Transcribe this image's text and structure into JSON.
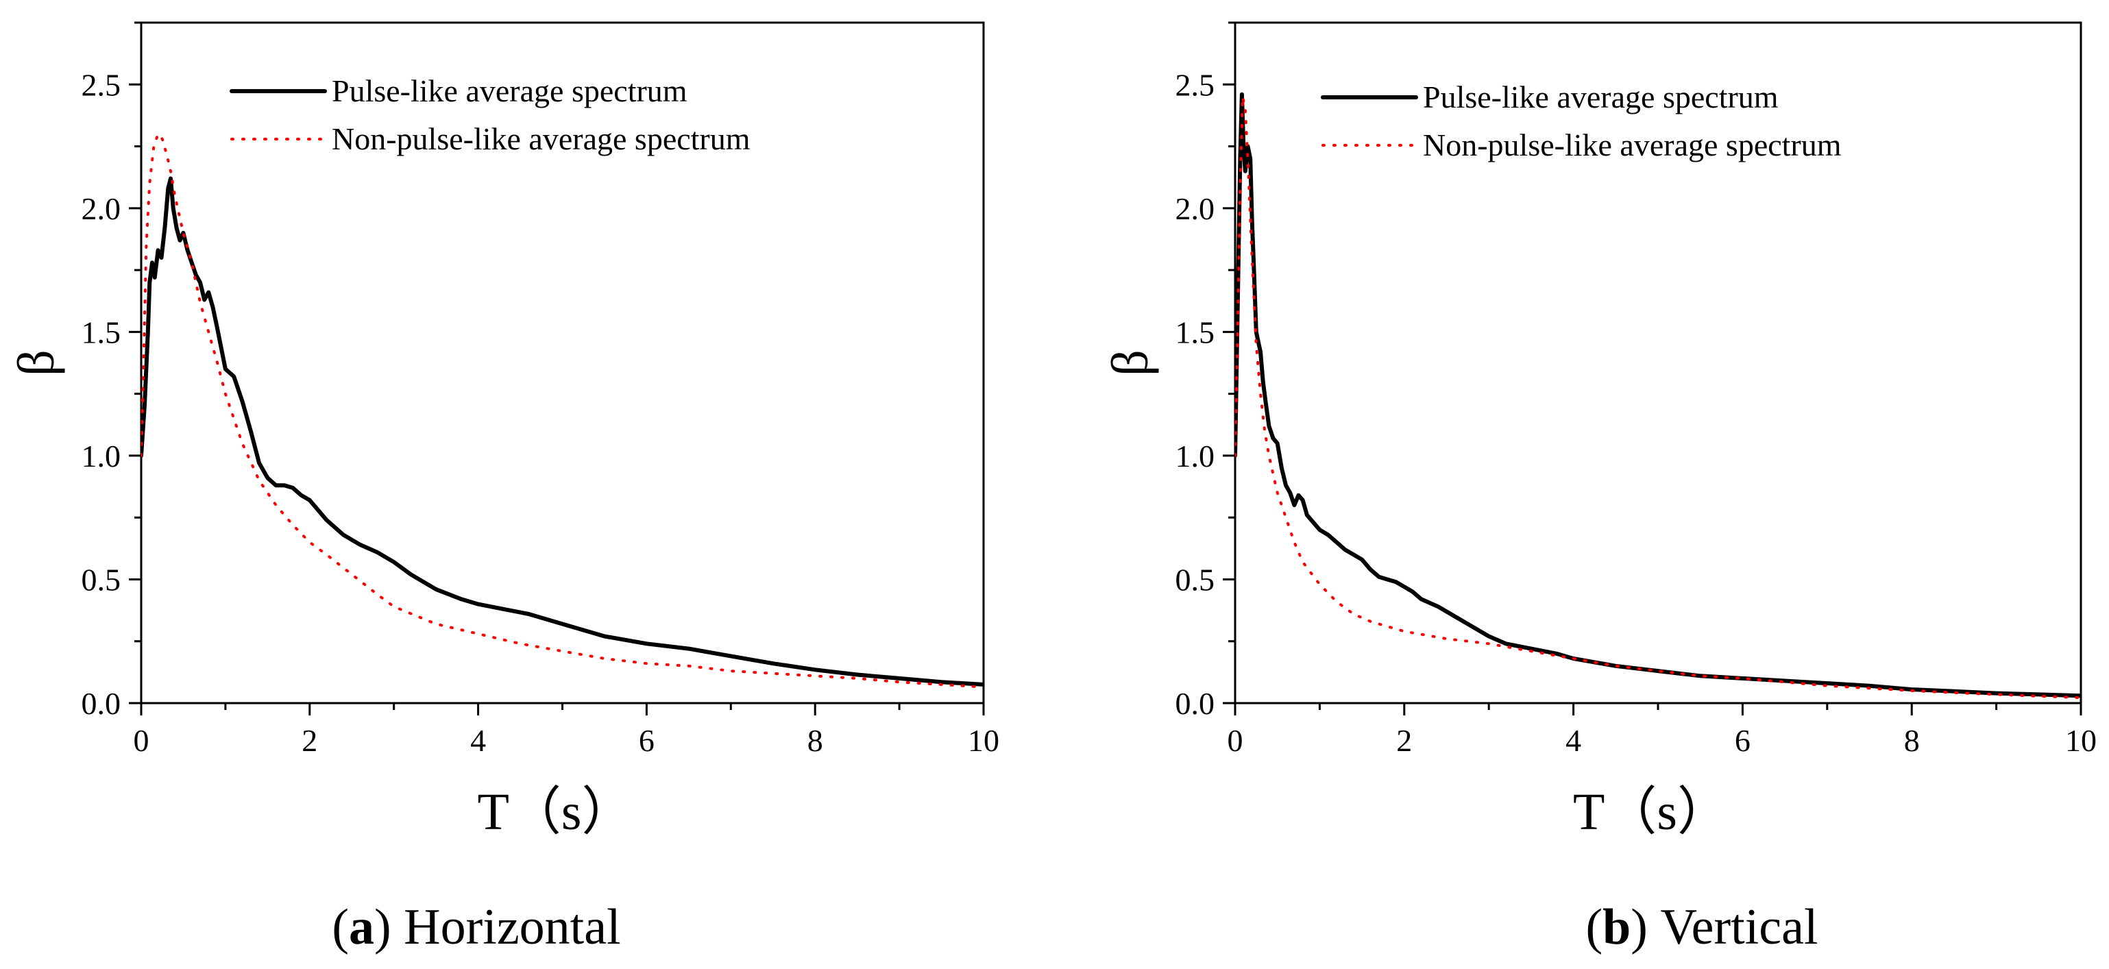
{
  "colors": {
    "pulse": "#000000",
    "non_pulse": "#ff0000",
    "axes": "#000000"
  },
  "chart_data": [
    {
      "type": "line",
      "caption_letter": "a",
      "caption_text": " Horizontal",
      "xlabel": "T（s）",
      "ylabel": "β",
      "xlim": [
        0,
        10
      ],
      "ylim": [
        0,
        2.75
      ],
      "xticks": [
        0,
        2,
        4,
        6,
        8,
        10
      ],
      "yticks": [
        0.0,
        0.5,
        1.0,
        1.5,
        2.0,
        2.5
      ],
      "xtick_labels": [
        "0",
        "2",
        "4",
        "6",
        "8",
        "10"
      ],
      "ytick_labels": [
        "0.0",
        "0.5",
        "1.0",
        "1.5",
        "2.0",
        "2.5"
      ],
      "grid": false,
      "legend_position": "top",
      "series": [
        {
          "name": "Pulse-like average spectrum",
          "style": "solid",
          "color": "#000000",
          "x": [
            0,
            0.04,
            0.08,
            0.1,
            0.13,
            0.16,
            0.2,
            0.24,
            0.28,
            0.32,
            0.35,
            0.38,
            0.42,
            0.46,
            0.5,
            0.55,
            0.6,
            0.65,
            0.7,
            0.75,
            0.8,
            0.85,
            0.9,
            1.0,
            1.1,
            1.2,
            1.3,
            1.4,
            1.5,
            1.6,
            1.7,
            1.8,
            1.9,
            2.0,
            2.1,
            2.2,
            2.4,
            2.6,
            2.8,
            3.0,
            3.2,
            3.5,
            3.8,
            4.0,
            4.3,
            4.6,
            5.0,
            5.5,
            6.0,
            6.5,
            7.0,
            7.5,
            8.0,
            8.5,
            9.0,
            9.5,
            10.0
          ],
          "y": [
            1.0,
            1.2,
            1.5,
            1.7,
            1.78,
            1.72,
            1.83,
            1.8,
            1.92,
            2.08,
            2.12,
            2.0,
            1.92,
            1.87,
            1.9,
            1.83,
            1.78,
            1.73,
            1.7,
            1.63,
            1.66,
            1.6,
            1.52,
            1.35,
            1.32,
            1.22,
            1.1,
            0.97,
            0.91,
            0.88,
            0.88,
            0.87,
            0.84,
            0.82,
            0.78,
            0.74,
            0.68,
            0.64,
            0.61,
            0.57,
            0.52,
            0.46,
            0.42,
            0.4,
            0.38,
            0.36,
            0.32,
            0.27,
            0.24,
            0.22,
            0.19,
            0.16,
            0.135,
            0.115,
            0.1,
            0.085,
            0.075
          ]
        },
        {
          "name": "Non-pulse-like average spectrum",
          "style": "dotted",
          "color": "#ff0000",
          "x": [
            0,
            0.03,
            0.06,
            0.1,
            0.15,
            0.2,
            0.25,
            0.3,
            0.35,
            0.4,
            0.5,
            0.6,
            0.7,
            0.8,
            0.9,
            1.0,
            1.2,
            1.4,
            1.6,
            1.8,
            2.0,
            2.2,
            2.5,
            2.8,
            3.0,
            3.5,
            4.0,
            4.5,
            5.0,
            5.5,
            6.0,
            6.5,
            7.0,
            7.5,
            8.0,
            8.5,
            9.0,
            9.5,
            10.0
          ],
          "y": [
            1.0,
            1.4,
            1.85,
            2.1,
            2.25,
            2.3,
            2.28,
            2.22,
            2.15,
            2.05,
            1.9,
            1.78,
            1.62,
            1.5,
            1.38,
            1.25,
            1.05,
            0.9,
            0.8,
            0.72,
            0.65,
            0.6,
            0.52,
            0.44,
            0.39,
            0.32,
            0.28,
            0.24,
            0.21,
            0.18,
            0.16,
            0.15,
            0.13,
            0.12,
            0.11,
            0.1,
            0.085,
            0.075,
            0.065
          ]
        }
      ]
    },
    {
      "type": "line",
      "caption_letter": "b",
      "caption_text": " Vertical",
      "xlabel": "T（s）",
      "ylabel": "β",
      "xlim": [
        0,
        10
      ],
      "ylim": [
        0,
        2.75
      ],
      "xticks": [
        0,
        2,
        4,
        6,
        8,
        10
      ],
      "yticks": [
        0.0,
        0.5,
        1.0,
        1.5,
        2.0,
        2.5
      ],
      "xtick_labels": [
        "0",
        "2",
        "4",
        "6",
        "8",
        "10"
      ],
      "ytick_labels": [
        "0.0",
        "0.5",
        "1.0",
        "1.5",
        "2.0",
        "2.5"
      ],
      "grid": false,
      "legend_position": "top",
      "series": [
        {
          "name": "Pulse-like average spectrum",
          "style": "solid",
          "color": "#000000",
          "x": [
            0,
            0.03,
            0.06,
            0.08,
            0.1,
            0.12,
            0.15,
            0.18,
            0.2,
            0.22,
            0.25,
            0.28,
            0.3,
            0.33,
            0.36,
            0.4,
            0.45,
            0.5,
            0.55,
            0.6,
            0.65,
            0.7,
            0.75,
            0.8,
            0.85,
            0.9,
            1.0,
            1.1,
            1.2,
            1.3,
            1.4,
            1.5,
            1.6,
            1.7,
            1.8,
            1.9,
            2.0,
            2.1,
            2.2,
            2.4,
            2.6,
            2.8,
            3.0,
            3.2,
            3.5,
            3.8,
            4.0,
            4.5,
            5.0,
            5.5,
            6.0,
            6.5,
            7.0,
            7.5,
            8.0,
            8.5,
            9.0,
            9.5,
            10.0
          ],
          "y": [
            1.0,
            1.6,
            2.2,
            2.46,
            2.25,
            2.15,
            2.25,
            2.2,
            1.95,
            1.78,
            1.5,
            1.45,
            1.42,
            1.3,
            1.22,
            1.12,
            1.07,
            1.05,
            0.95,
            0.88,
            0.85,
            0.8,
            0.84,
            0.82,
            0.76,
            0.74,
            0.7,
            0.68,
            0.65,
            0.62,
            0.6,
            0.58,
            0.54,
            0.51,
            0.5,
            0.49,
            0.47,
            0.45,
            0.42,
            0.39,
            0.35,
            0.31,
            0.27,
            0.24,
            0.22,
            0.2,
            0.18,
            0.15,
            0.13,
            0.11,
            0.1,
            0.09,
            0.08,
            0.07,
            0.055,
            0.048,
            0.04,
            0.035,
            0.03
          ]
        },
        {
          "name": "Non-pulse-like average spectrum",
          "style": "dotted",
          "color": "#ff0000",
          "x": [
            0,
            0.03,
            0.06,
            0.09,
            0.12,
            0.15,
            0.2,
            0.25,
            0.3,
            0.35,
            0.4,
            0.5,
            0.6,
            0.7,
            0.8,
            1.0,
            1.2,
            1.4,
            1.6,
            1.8,
            2.0,
            2.5,
            3.0,
            3.5,
            4.0,
            4.5,
            5.0,
            5.5,
            6.0,
            6.5,
            7.0,
            7.5,
            8.0,
            8.5,
            9.0,
            9.5,
            10.0
          ],
          "y": [
            1.0,
            1.5,
            2.1,
            2.45,
            2.4,
            2.2,
            1.8,
            1.45,
            1.25,
            1.1,
            1.0,
            0.85,
            0.75,
            0.65,
            0.57,
            0.48,
            0.41,
            0.36,
            0.33,
            0.31,
            0.29,
            0.26,
            0.24,
            0.21,
            0.18,
            0.15,
            0.13,
            0.11,
            0.1,
            0.085,
            0.07,
            0.06,
            0.05,
            0.042,
            0.035,
            0.028,
            0.022
          ]
        }
      ]
    }
  ]
}
